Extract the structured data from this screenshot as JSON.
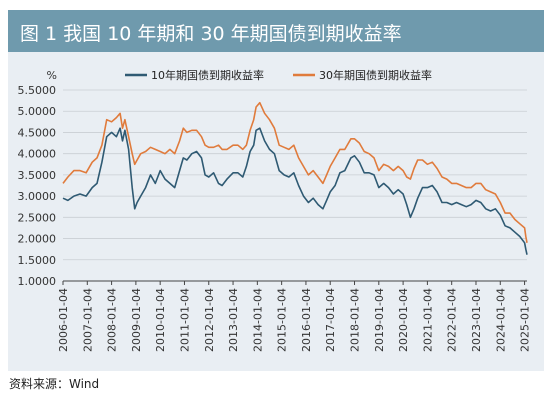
{
  "figure": {
    "title": "图 1   我国 10 年期和 30 年期国债到期收益率",
    "source": "资料来源：Wind"
  },
  "chart_data": {
    "type": "line",
    "title": "",
    "xlabel": "",
    "ylabel": "%",
    "ylim": [
      1.0,
      5.5
    ],
    "yticks": [
      "1.0000",
      "1.5000",
      "2.0000",
      "2.5000",
      "3.0000",
      "3.5000",
      "4.0000",
      "4.5000",
      "5.0000",
      "5.5000"
    ],
    "xticks": [
      "2006-01-04",
      "2007-01-04",
      "2008-01-04",
      "2009-01-04",
      "2010-01-04",
      "2011-01-04",
      "2012-01-04",
      "2013-01-04",
      "2014-01-04",
      "2015-01-04",
      "2016-01-04",
      "2017-01-04",
      "2018-01-04",
      "2019-01-04",
      "2020-01-04",
      "2021-01-04",
      "2022-01-04",
      "2023-01-04",
      "2024-01-04",
      "2025-01-04"
    ],
    "grid": true,
    "legend_position": "top-center",
    "series": [
      {
        "name": "10年期国债到期收益率",
        "color": "#2f5a73",
        "x": [
          2006.0,
          2006.2,
          2006.45,
          2006.7,
          2006.95,
          2007.2,
          2007.4,
          2007.6,
          2007.8,
          2008.0,
          2008.2,
          2008.35,
          2008.45,
          2008.55,
          2008.7,
          2008.85,
          2008.95,
          2009.05,
          2009.2,
          2009.4,
          2009.6,
          2009.8,
          2010.0,
          2010.2,
          2010.4,
          2010.6,
          2010.8,
          2010.95,
          2011.1,
          2011.3,
          2011.5,
          2011.7,
          2011.85,
          2012.0,
          2012.2,
          2012.4,
          2012.55,
          2012.75,
          2013.0,
          2013.2,
          2013.4,
          2013.55,
          2013.7,
          2013.85,
          2013.95,
          2014.1,
          2014.3,
          2014.5,
          2014.7,
          2014.9,
          2015.1,
          2015.3,
          2015.5,
          2015.7,
          2015.9,
          2016.1,
          2016.3,
          2016.5,
          2016.7,
          2016.85,
          2017.0,
          2017.2,
          2017.4,
          2017.6,
          2017.85,
          2018.0,
          2018.2,
          2018.4,
          2018.6,
          2018.8,
          2019.0,
          2019.2,
          2019.4,
          2019.6,
          2019.8,
          2020.0,
          2020.15,
          2020.3,
          2020.45,
          2020.6,
          2020.8,
          2021.0,
          2021.2,
          2021.4,
          2021.6,
          2021.8,
          2022.0,
          2022.2,
          2022.4,
          2022.6,
          2022.8,
          2023.0,
          2023.2,
          2023.4,
          2023.6,
          2023.8,
          2024.0,
          2024.2,
          2024.4,
          2024.6,
          2024.8,
          2025.0,
          2025.05,
          2025.1
        ],
        "values": [
          2.95,
          2.9,
          3.0,
          3.05,
          3.0,
          3.2,
          3.3,
          3.8,
          4.4,
          4.5,
          4.4,
          4.6,
          4.3,
          4.55,
          4.1,
          3.2,
          2.7,
          2.85,
          3.0,
          3.2,
          3.5,
          3.3,
          3.6,
          3.4,
          3.3,
          3.2,
          3.6,
          3.9,
          3.85,
          4.0,
          4.05,
          3.9,
          3.5,
          3.45,
          3.55,
          3.3,
          3.25,
          3.4,
          3.55,
          3.55,
          3.45,
          3.7,
          4.05,
          4.2,
          4.55,
          4.6,
          4.3,
          4.1,
          4.0,
          3.6,
          3.5,
          3.45,
          3.55,
          3.25,
          3.0,
          2.85,
          2.95,
          2.8,
          2.7,
          2.9,
          3.1,
          3.25,
          3.55,
          3.6,
          3.9,
          3.95,
          3.8,
          3.55,
          3.55,
          3.5,
          3.2,
          3.3,
          3.2,
          3.05,
          3.15,
          3.05,
          2.8,
          2.5,
          2.7,
          2.95,
          3.2,
          3.2,
          3.25,
          3.1,
          2.85,
          2.85,
          2.8,
          2.85,
          2.8,
          2.75,
          2.8,
          2.9,
          2.85,
          2.7,
          2.65,
          2.7,
          2.55,
          2.3,
          2.25,
          2.15,
          2.05,
          1.9,
          1.75,
          1.62
        ]
      },
      {
        "name": "30年期国债到期收益率",
        "color": "#e07b3c",
        "x": [
          2006.0,
          2006.2,
          2006.45,
          2006.7,
          2006.95,
          2007.2,
          2007.4,
          2007.6,
          2007.8,
          2008.0,
          2008.2,
          2008.35,
          2008.45,
          2008.55,
          2008.7,
          2008.85,
          2008.95,
          2009.05,
          2009.2,
          2009.4,
          2009.6,
          2009.8,
          2010.0,
          2010.2,
          2010.4,
          2010.6,
          2010.8,
          2010.95,
          2011.1,
          2011.3,
          2011.5,
          2011.7,
          2011.85,
          2012.0,
          2012.2,
          2012.4,
          2012.55,
          2012.75,
          2013.0,
          2013.2,
          2013.4,
          2013.55,
          2013.7,
          2013.85,
          2013.95,
          2014.1,
          2014.3,
          2014.5,
          2014.7,
          2014.9,
          2015.1,
          2015.3,
          2015.5,
          2015.7,
          2015.9,
          2016.1,
          2016.3,
          2016.5,
          2016.7,
          2016.85,
          2017.0,
          2017.2,
          2017.4,
          2017.6,
          2017.85,
          2018.0,
          2018.2,
          2018.4,
          2018.6,
          2018.8,
          2019.0,
          2019.2,
          2019.4,
          2019.6,
          2019.8,
          2020.0,
          2020.15,
          2020.3,
          2020.45,
          2020.6,
          2020.8,
          2021.0,
          2021.2,
          2021.4,
          2021.6,
          2021.8,
          2022.0,
          2022.2,
          2022.4,
          2022.6,
          2022.8,
          2023.0,
          2023.2,
          2023.4,
          2023.6,
          2023.8,
          2024.0,
          2024.2,
          2024.4,
          2024.6,
          2024.8,
          2025.0,
          2025.05,
          2025.1
        ],
        "values": [
          3.3,
          3.45,
          3.6,
          3.6,
          3.55,
          3.8,
          3.9,
          4.2,
          4.8,
          4.75,
          4.85,
          4.95,
          4.6,
          4.8,
          4.4,
          4.0,
          3.75,
          3.85,
          4.0,
          4.05,
          4.15,
          4.1,
          4.05,
          4.0,
          4.1,
          4.0,
          4.3,
          4.6,
          4.5,
          4.55,
          4.55,
          4.4,
          4.2,
          4.15,
          4.15,
          4.2,
          4.1,
          4.1,
          4.2,
          4.2,
          4.1,
          4.2,
          4.55,
          4.8,
          5.1,
          5.2,
          4.95,
          4.8,
          4.6,
          4.2,
          4.15,
          4.1,
          4.2,
          3.9,
          3.7,
          3.5,
          3.6,
          3.45,
          3.3,
          3.5,
          3.7,
          3.9,
          4.1,
          4.1,
          4.35,
          4.35,
          4.25,
          4.05,
          4.0,
          3.9,
          3.6,
          3.75,
          3.7,
          3.6,
          3.7,
          3.6,
          3.45,
          3.4,
          3.65,
          3.85,
          3.85,
          3.75,
          3.8,
          3.65,
          3.45,
          3.4,
          3.3,
          3.3,
          3.25,
          3.2,
          3.2,
          3.3,
          3.3,
          3.15,
          3.1,
          3.05,
          2.85,
          2.6,
          2.6,
          2.45,
          2.35,
          2.25,
          2.05,
          1.9
        ]
      }
    ]
  }
}
